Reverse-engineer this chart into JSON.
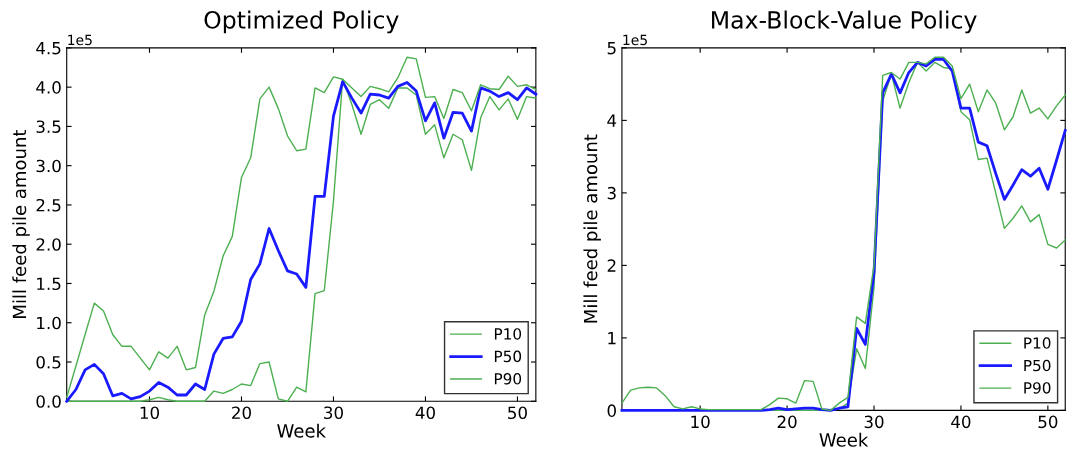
{
  "chart_data": [
    {
      "type": "line",
      "title": "Optimized Policy",
      "xlabel": "Week",
      "ylabel": "Mill feed pile amount",
      "annotations": [
        "1e5"
      ],
      "x": [
        1,
        2,
        3,
        4,
        5,
        6,
        7,
        8,
        9,
        10,
        11,
        12,
        13,
        14,
        15,
        16,
        17,
        18,
        19,
        20,
        21,
        22,
        23,
        24,
        25,
        26,
        27,
        28,
        29,
        30,
        31,
        32,
        33,
        34,
        35,
        36,
        37,
        38,
        39,
        40,
        41,
        42,
        43,
        44,
        45,
        46,
        47,
        48,
        49,
        50,
        51,
        52
      ],
      "xlim": [
        1,
        52
      ],
      "xticks": [
        10,
        20,
        30,
        40,
        50
      ],
      "ylim": [
        0,
        4.5
      ],
      "yticks": [
        {
          "value": 0,
          "label": "0.0"
        },
        0.5,
        {
          "value": 1,
          "label": "1.0"
        },
        1.5,
        {
          "value": 2,
          "label": "2.0"
        },
        2.5,
        {
          "value": 3,
          "label": "3.0"
        },
        3.5,
        {
          "value": 4,
          "label": "4.0"
        },
        4.5
      ],
      "grid": false,
      "legend": "lower right",
      "marker": "none",
      "line_style": "solid",
      "series": [
        {
          "name": "P10",
          "color": "#4caf50",
          "values": [
            0,
            0,
            0,
            0,
            0,
            0,
            0,
            0,
            0,
            0.02,
            0.05,
            0.02,
            0,
            0,
            0,
            0,
            0.13,
            0.1,
            0.15,
            0.22,
            0.2,
            0.48,
            0.5,
            0.03,
            0,
            0.18,
            0.12,
            1.37,
            1.41,
            2.55,
            4.1,
            3.78,
            3.4,
            3.78,
            3.84,
            3.73,
            3.99,
            3.99,
            3.9,
            3.4,
            3.52,
            3.1,
            3.4,
            3.33,
            2.94,
            3.61,
            3.88,
            3.71,
            3.85,
            3.59,
            3.88,
            3.86
          ]
        },
        {
          "name": "P50",
          "color": "#1a1aff",
          "values": [
            0,
            0.15,
            0.4,
            0.47,
            0.35,
            0.07,
            0.1,
            0.03,
            0.06,
            0.13,
            0.24,
            0.18,
            0.08,
            0.08,
            0.22,
            0.15,
            0.6,
            0.8,
            0.82,
            1.02,
            1.55,
            1.75,
            2.2,
            1.92,
            1.66,
            1.62,
            1.45,
            2.61,
            2.61,
            3.63,
            4.07,
            3.86,
            3.67,
            3.91,
            3.9,
            3.86,
            4.01,
            4.06,
            3.95,
            3.57,
            3.8,
            3.35,
            3.68,
            3.67,
            3.44,
            3.99,
            3.95,
            3.88,
            3.93,
            3.84,
            3.99,
            3.91
          ]
        },
        {
          "name": "P90",
          "color": "#4caf50",
          "values": [
            0.05,
            0.45,
            0.85,
            1.25,
            1.15,
            0.85,
            0.7,
            0.7,
            0.55,
            0.4,
            0.63,
            0.55,
            0.7,
            0.4,
            0.43,
            1.1,
            1.4,
            1.85,
            2.1,
            2.85,
            3.1,
            3.85,
            4.0,
            3.73,
            3.38,
            3.19,
            3.21,
            3.99,
            3.93,
            4.13,
            4.1,
            3.99,
            3.88,
            4.01,
            3.98,
            3.94,
            4.12,
            4.38,
            4.36,
            3.87,
            3.88,
            3.6,
            3.97,
            3.93,
            3.7,
            4.03,
            3.98,
            3.97,
            4.14,
            4.01,
            4.03,
            3.97
          ]
        }
      ]
    },
    {
      "type": "line",
      "title": "Max-Block-Value Policy",
      "xlabel": "Week",
      "ylabel": "Mill feed pile amount",
      "annotations": [
        "1e5"
      ],
      "x": [
        1,
        2,
        3,
        4,
        5,
        6,
        7,
        8,
        9,
        10,
        11,
        12,
        13,
        14,
        15,
        16,
        17,
        18,
        19,
        20,
        21,
        22,
        23,
        24,
        25,
        26,
        27,
        28,
        29,
        30,
        31,
        32,
        33,
        34,
        35,
        36,
        37,
        38,
        39,
        40,
        41,
        42,
        43,
        44,
        45,
        46,
        47,
        48,
        49,
        50,
        51,
        52
      ],
      "xlim": [
        1,
        52
      ],
      "xticks": [
        10,
        20,
        30,
        40,
        50
      ],
      "ylim": [
        0,
        5
      ],
      "yticks": [
        0,
        1,
        2,
        3,
        4,
        5
      ],
      "grid": false,
      "legend": "lower right",
      "marker": "none",
      "line_style": "solid",
      "series": [
        {
          "name": "P10",
          "color": "#4caf50",
          "values": [
            null,
            null,
            null,
            null,
            null,
            0,
            0,
            0,
            0,
            0,
            0,
            0,
            0,
            0,
            0,
            0,
            0,
            0,
            0,
            0,
            0,
            0,
            0,
            0,
            0,
            0.02,
            0.1,
            0.85,
            0.58,
            1.7,
            4.27,
            4.64,
            4.17,
            4.52,
            4.8,
            4.68,
            4.8,
            4.73,
            4.71,
            4.12,
            4.01,
            3.46,
            3.48,
            3.0,
            2.51,
            2.65,
            2.82,
            2.6,
            2.7,
            2.29,
            2.24,
            2.35
          ]
        },
        {
          "name": "P50",
          "color": "#1a1aff",
          "values": [
            0,
            0,
            0,
            0,
            0,
            0,
            0,
            0,
            0,
            0,
            0,
            0,
            0,
            0,
            0,
            0,
            0,
            0.01,
            0.03,
            0.01,
            0.02,
            0.03,
            0.03,
            0.01,
            0,
            0.03,
            0.05,
            1.13,
            0.91,
            1.9,
            4.38,
            4.64,
            4.38,
            4.66,
            4.8,
            4.75,
            4.84,
            4.84,
            4.68,
            4.17,
            4.17,
            3.7,
            3.65,
            3.27,
            2.91,
            3.11,
            3.32,
            3.23,
            3.34,
            3.05,
            3.45,
            3.86
          ]
        },
        {
          "name": "P90",
          "color": "#4caf50",
          "values": [
            0.1,
            0.28,
            0.31,
            0.32,
            0.31,
            0.2,
            0.05,
            0.02,
            0.05,
            0.02,
            0.01,
            0.01,
            0.01,
            0.01,
            0.01,
            0.01,
            0.01,
            0.08,
            0.17,
            0.16,
            0.1,
            0.41,
            0.4,
            0.02,
            0,
            0.1,
            0.18,
            1.29,
            1.2,
            2.0,
            4.62,
            4.66,
            4.57,
            4.8,
            4.8,
            4.78,
            4.87,
            4.87,
            4.75,
            4.3,
            4.5,
            4.12,
            4.42,
            4.24,
            3.87,
            4.05,
            4.42,
            4.1,
            4.17,
            4.02,
            4.2,
            4.35
          ]
        }
      ]
    }
  ]
}
